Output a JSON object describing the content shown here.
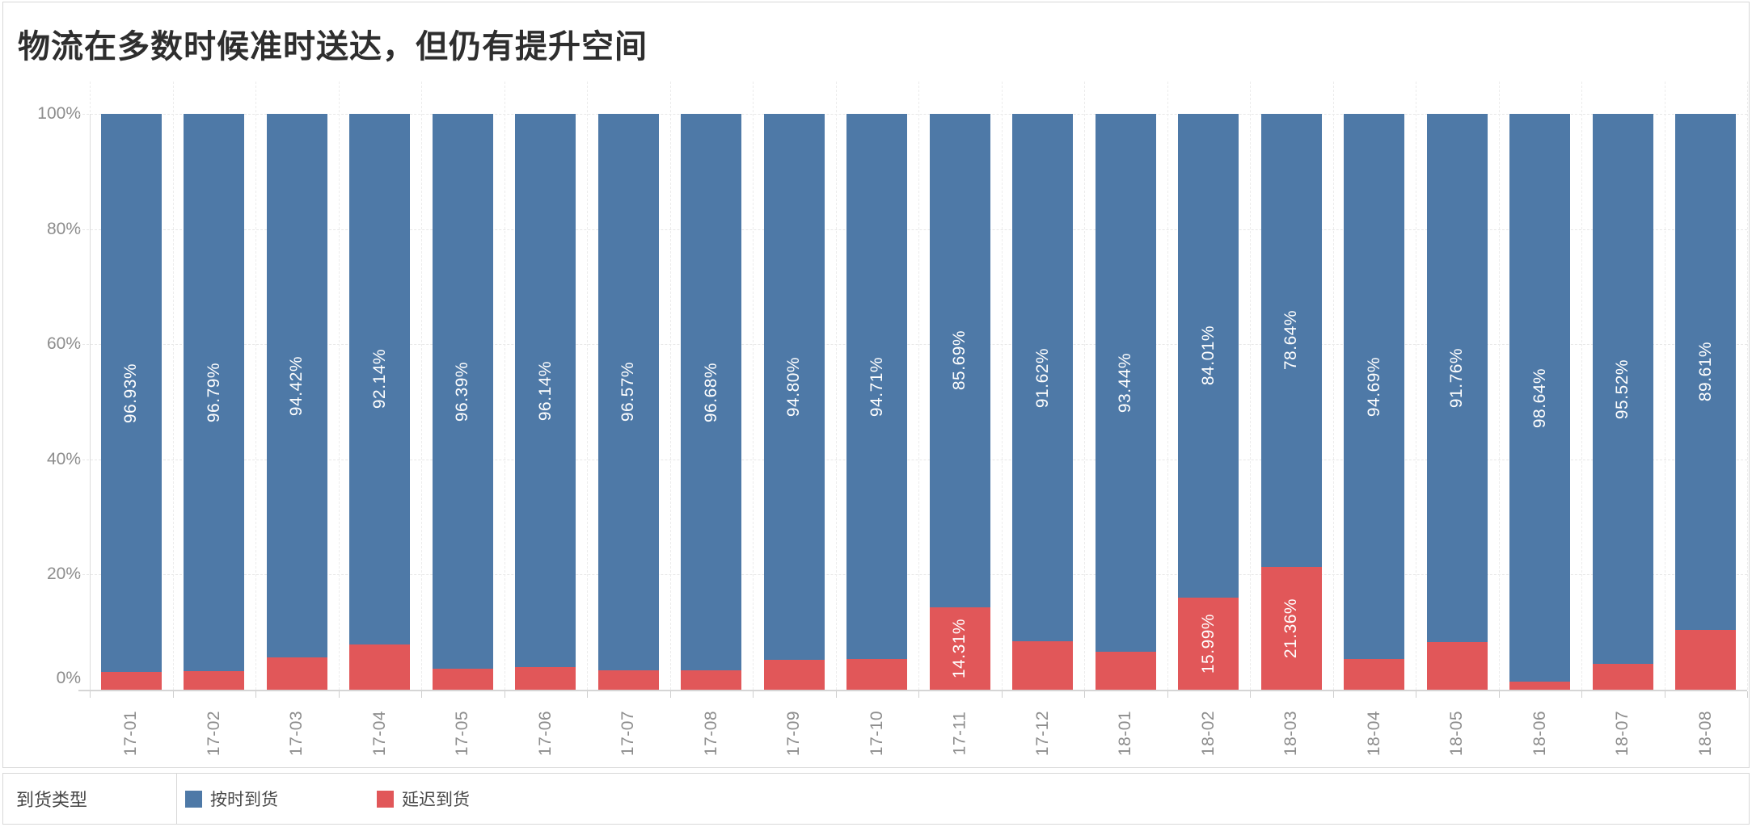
{
  "title": "物流在多数时候准时送达，但仍有提升空间",
  "chart_data": {
    "type": "bar",
    "subtype": "stacked-100-percent-vertical",
    "title": "物流在多数时候准时送达，但仍有提升空间",
    "categories": [
      "17-01",
      "17-02",
      "17-03",
      "17-04",
      "17-05",
      "17-06",
      "17-07",
      "17-08",
      "17-09",
      "17-10",
      "17-11",
      "17-12",
      "18-01",
      "18-02",
      "18-03",
      "18-04",
      "18-05",
      "18-06",
      "18-07",
      "18-08"
    ],
    "series": [
      {
        "key": "on-time",
        "name": "按时到货",
        "color": "#4e79a7",
        "values": [
          96.93,
          96.79,
          94.42,
          92.14,
          96.39,
          96.14,
          96.57,
          96.68,
          94.8,
          94.71,
          85.69,
          91.62,
          93.44,
          84.01,
          78.64,
          94.69,
          91.76,
          98.64,
          95.52,
          89.61
        ],
        "labels": [
          "96.93%",
          "96.79%",
          "94.42%",
          "92.14%",
          "96.39%",
          "96.14%",
          "96.57%",
          "96.68%",
          "94.80%",
          "94.71%",
          "85.69%",
          "91.62%",
          "93.44%",
          "84.01%",
          "78.64%",
          "94.69%",
          "91.76%",
          "98.64%",
          "95.52%",
          "89.61%"
        ]
      },
      {
        "key": "delayed",
        "name": "延迟到货",
        "color": "#e15759",
        "values": [
          3.07,
          3.21,
          5.58,
          7.86,
          3.61,
          3.86,
          3.43,
          3.32,
          5.2,
          5.29,
          14.31,
          8.38,
          6.56,
          15.99,
          21.36,
          5.31,
          8.24,
          1.36,
          4.48,
          10.39
        ],
        "labels": [
          null,
          null,
          null,
          null,
          null,
          null,
          null,
          null,
          null,
          null,
          "14.31%",
          null,
          null,
          "15.99%",
          "21.36%",
          null,
          null,
          null,
          null,
          null
        ]
      }
    ],
    "xlabel": "",
    "ylabel": "",
    "ylim": [
      0,
      100
    ],
    "y_ticks": [
      0,
      20,
      40,
      60,
      80,
      100
    ],
    "y_tick_labels": [
      "0%",
      "20%",
      "40%",
      "60%",
      "80%",
      "100%"
    ],
    "grid": "horizontal dashed at y ticks, vertical dashed at category boundaries",
    "legend_position": "bottom"
  },
  "legend": {
    "title": "到货类型",
    "items": [
      {
        "key": "on-time",
        "label": "按时到货",
        "color": "#4e79a7"
      },
      {
        "key": "delayed",
        "label": "延迟到货",
        "color": "#e15759"
      }
    ]
  },
  "colors": {
    "on_time_blue": "#4e79a7",
    "delayed_red": "#e15759",
    "axis_text": "#8d8d8d",
    "gridline": "#e7e7e7",
    "panel_border": "#d8d8d8",
    "bar_label_text": "#ffffff",
    "title_text": "#2e2e2e"
  }
}
